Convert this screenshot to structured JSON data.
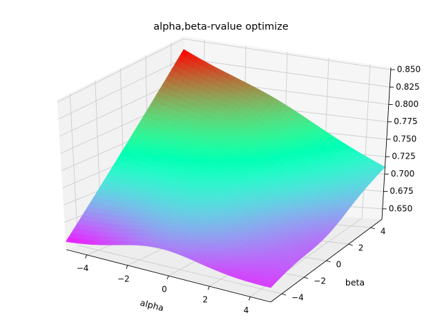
{
  "chart_data": {
    "type": "surface",
    "title": "alpha,beta-rvalue optimize",
    "xlabel": "alpha",
    "ylabel": "beta",
    "zlabel": "",
    "xlim": [
      -5,
      5
    ],
    "ylim": [
      -5,
      5
    ],
    "zlim": [
      0.635,
      0.853
    ],
    "x_ticks": [
      -4,
      -2,
      0,
      2,
      4
    ],
    "y_ticks": [
      -4,
      -2,
      0,
      2,
      4
    ],
    "z_ticks": [
      0.65,
      0.675,
      0.7,
      0.725,
      0.75,
      0.775,
      0.8,
      0.825,
      0.85
    ],
    "x_tick_labels": [
      "−4",
      "−2",
      "0",
      "2",
      "4"
    ],
    "y_tick_labels": [
      "−4",
      "−2",
      "0",
      "2",
      "4"
    ],
    "z_tick_labels": [
      "0.650",
      "0.675",
      "0.700",
      "0.725",
      "0.750",
      "0.775",
      "0.800",
      "0.825",
      "0.850"
    ],
    "colormap": "rainbow",
    "grid": true,
    "corner_values": {
      "alpha_-5_beta_-5": 0.645,
      "alpha_5_beta_-5": 0.655,
      "alpha_-5_beta_5": 0.836,
      "alpha_5_beta_5": 0.71
    },
    "peak": {
      "alpha": -5,
      "beta": 5,
      "z": 0.836
    }
  }
}
